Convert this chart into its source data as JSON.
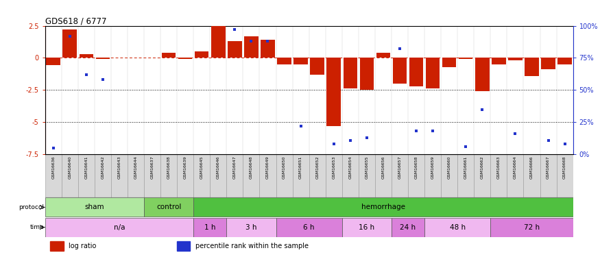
{
  "title": "GDS618 / 6777",
  "samples": [
    "GSM16636",
    "GSM16640",
    "GSM16641",
    "GSM16642",
    "GSM16643",
    "GSM16644",
    "GSM16637",
    "GSM16638",
    "GSM16639",
    "GSM16645",
    "GSM16646",
    "GSM16647",
    "GSM16648",
    "GSM16649",
    "GSM16650",
    "GSM16651",
    "GSM16652",
    "GSM16653",
    "GSM16654",
    "GSM16655",
    "GSM16656",
    "GSM16657",
    "GSM16658",
    "GSM16659",
    "GSM16660",
    "GSM16661",
    "GSM16662",
    "GSM16663",
    "GSM16664",
    "GSM16666",
    "GSM16667",
    "GSM16668"
  ],
  "log_ratio": [
    -0.55,
    2.2,
    0.3,
    -0.1,
    0.0,
    0.0,
    0.0,
    0.4,
    -0.1,
    0.5,
    2.5,
    1.3,
    1.7,
    1.4,
    -0.5,
    -0.5,
    -1.3,
    -5.3,
    -2.4,
    -2.5,
    0.4,
    -2.0,
    -2.2,
    -2.4,
    -0.7,
    -0.1,
    -2.6,
    -0.5,
    -0.2,
    -1.4,
    -0.9,
    -0.5
  ],
  "percentile": [
    5,
    92,
    62,
    58,
    0,
    0,
    0,
    0,
    0,
    0,
    0,
    97,
    88,
    88,
    0,
    22,
    0,
    8,
    11,
    13,
    0,
    82,
    18,
    18,
    0,
    6,
    35,
    0,
    16,
    0,
    11,
    8
  ],
  "protocol_groups": [
    {
      "label": "sham",
      "start": 0,
      "end": 6,
      "color": "#b0e8a0"
    },
    {
      "label": "control",
      "start": 6,
      "end": 9,
      "color": "#80d060"
    },
    {
      "label": "hemorrhage",
      "start": 9,
      "end": 32,
      "color": "#50c040"
    }
  ],
  "time_groups": [
    {
      "label": "n/a",
      "start": 0,
      "end": 9,
      "color": "#f0b8f0"
    },
    {
      "label": "1 h",
      "start": 9,
      "end": 11,
      "color": "#da80da"
    },
    {
      "label": "3 h",
      "start": 11,
      "end": 14,
      "color": "#f0b8f0"
    },
    {
      "label": "6 h",
      "start": 14,
      "end": 18,
      "color": "#da80da"
    },
    {
      "label": "16 h",
      "start": 18,
      "end": 21,
      "color": "#f0b8f0"
    },
    {
      "label": "24 h",
      "start": 21,
      "end": 23,
      "color": "#da80da"
    },
    {
      "label": "48 h",
      "start": 23,
      "end": 27,
      "color": "#f0b8f0"
    },
    {
      "label": "72 h",
      "start": 27,
      "end": 32,
      "color": "#da80da"
    }
  ],
  "bar_color": "#cc2000",
  "dot_color": "#2233cc",
  "ylim": [
    -7.5,
    2.5
  ],
  "yticks_left": [
    -7.5,
    -5.0,
    -2.5,
    0.0,
    2.5
  ],
  "ytick_labels_left": [
    "-7.5",
    "-5",
    "-2.5",
    "0",
    "2.5"
  ],
  "pct_ticks": [
    0,
    25,
    50,
    75,
    100
  ],
  "pct_labels": [
    "0%",
    "25%",
    "50%",
    "75%",
    "100%"
  ],
  "hline_y": 0.0,
  "dotted_lines": [
    -2.5,
    -5.0
  ]
}
